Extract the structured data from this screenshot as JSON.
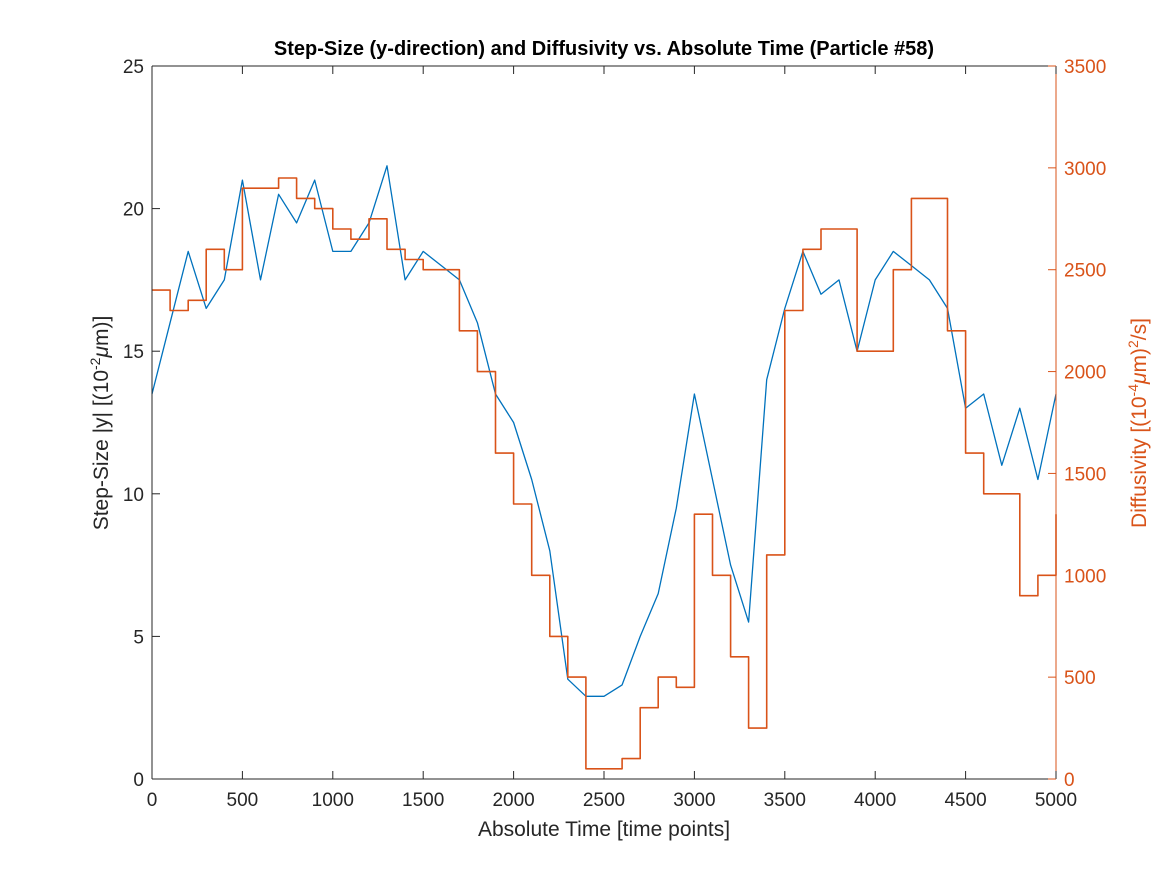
{
  "chart_data": {
    "type": "line",
    "title": "Step-Size (y-direction) and Diffusivity vs. Absolute Time (Particle #58)",
    "xlabel": "Absolute Time [time points]",
    "ylabel_left": {
      "prefix": "Step-Size |y| [(10",
      "exp": "-2",
      "unit": "μ",
      "suffix": "m)]"
    },
    "ylabel_right": {
      "prefix": "Diffusivity [(10",
      "exp": "-4",
      "unit": "μ",
      "mid": "m)",
      "exp2": "2",
      "suffix": "/s]"
    },
    "xlim": [
      0,
      5000
    ],
    "ylim_left": [
      0,
      25
    ],
    "ylim_right": [
      0,
      3500
    ],
    "x_ticks": [
      0,
      500,
      1000,
      1500,
      2000,
      2500,
      3000,
      3500,
      4000,
      4500,
      5000
    ],
    "y_left_ticks": [
      0,
      5,
      10,
      15,
      20,
      25
    ],
    "y_right_ticks": [
      0,
      500,
      1000,
      1500,
      2000,
      2500,
      3000,
      3500
    ],
    "grid": false,
    "colors": {
      "left": "#0072BD",
      "right": "#D95319",
      "axis": "#262626"
    },
    "series": [
      {
        "axis": "left",
        "color": "#0072BD",
        "x": [
          0,
          100,
          200,
          300,
          400,
          500,
          600,
          700,
          800,
          900,
          1000,
          1100,
          1200,
          1300,
          1400,
          1500,
          1600,
          1700,
          1800,
          1900,
          2000,
          2100,
          2200,
          2300,
          2400,
          2500,
          2600,
          2700,
          2800,
          2900,
          3000,
          3100,
          3200,
          3300,
          3400,
          3500,
          3600,
          3700,
          3800,
          3900,
          4000,
          4100,
          4200,
          4300,
          4400,
          4500,
          4600,
          4700,
          4800,
          4900,
          5000
        ],
        "values": [
          13.5,
          16.0,
          18.5,
          16.5,
          17.5,
          21.0,
          17.5,
          20.5,
          19.5,
          21.0,
          18.5,
          18.5,
          19.5,
          21.5,
          17.5,
          18.5,
          18.0,
          17.5,
          16.0,
          13.5,
          12.5,
          10.5,
          8.0,
          3.5,
          2.9,
          2.9,
          3.3,
          5.0,
          6.5,
          9.5,
          13.5,
          10.5,
          7.5,
          5.5,
          14.0,
          16.5,
          18.5,
          17.0,
          17.5,
          15.0,
          17.5,
          18.5,
          18.0,
          17.5,
          16.5,
          13.0,
          13.5,
          11.0,
          13.0,
          10.5,
          13.5
        ]
      },
      {
        "axis": "right",
        "color": "#D95319",
        "x": [
          0,
          100,
          200,
          300,
          400,
          500,
          600,
          700,
          800,
          900,
          1000,
          1100,
          1200,
          1300,
          1400,
          1500,
          1600,
          1700,
          1800,
          1900,
          2000,
          2100,
          2200,
          2300,
          2400,
          2500,
          2600,
          2700,
          2800,
          2900,
          3000,
          3100,
          3200,
          3300,
          3400,
          3500,
          3600,
          3700,
          3800,
          3900,
          4000,
          4100,
          4200,
          4300,
          4400,
          4500,
          4600,
          4700,
          4800,
          4900,
          5000
        ],
        "values": [
          2400,
          2300,
          2350,
          2600,
          2500,
          2900,
          2900,
          2950,
          2850,
          2800,
          2700,
          2650,
          2750,
          2600,
          2550,
          2500,
          2500,
          2200,
          2000,
          1600,
          1350,
          1000,
          700,
          500,
          50,
          50,
          100,
          350,
          500,
          450,
          1300,
          1000,
          600,
          250,
          1100,
          2300,
          2600,
          2700,
          2700,
          2100,
          2100,
          2500,
          2850,
          2850,
          2200,
          1600,
          1400,
          1400,
          900,
          1000,
          1300
        ]
      }
    ]
  }
}
